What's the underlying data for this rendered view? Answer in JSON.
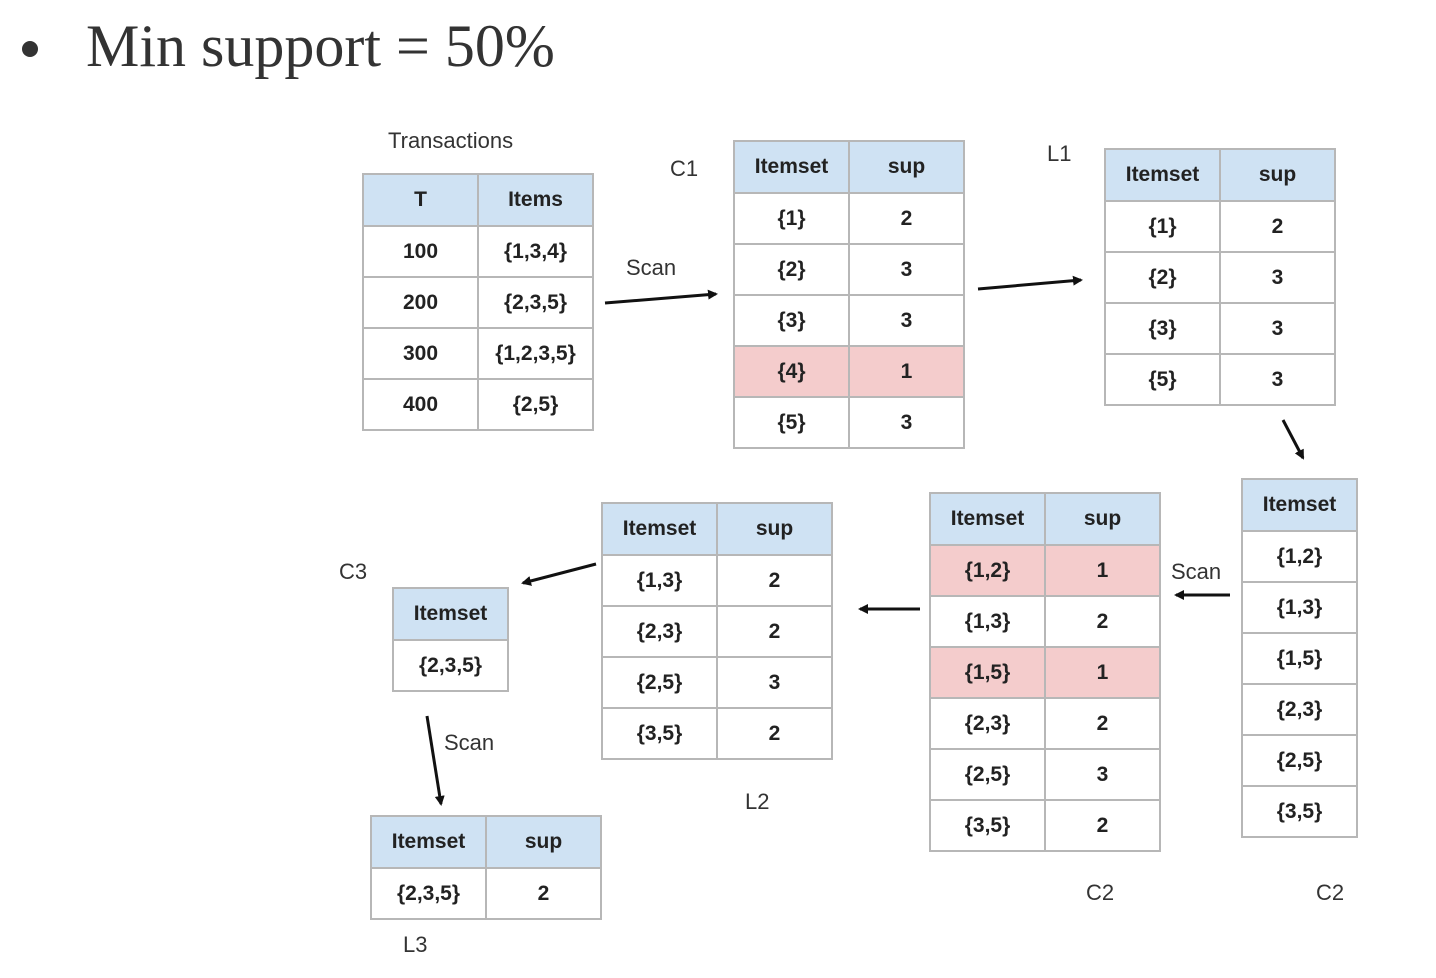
{
  "heading": "Min support = 50%",
  "labels": {
    "transactions": "Transactions",
    "c1": "C1",
    "l1": "L1",
    "c2_left": "C2",
    "c2_right": "C2",
    "l2": "L2",
    "c3": "C3",
    "l3": "L3",
    "scan1": "Scan",
    "scan2": "Scan",
    "scan3": "Scan"
  },
  "transactions": {
    "headers": [
      "T",
      "Items"
    ],
    "rows": [
      [
        "100",
        "{1,3,4}"
      ],
      [
        "200",
        "{2,3,5}"
      ],
      [
        "300",
        "{1,2,3,5}"
      ],
      [
        "400",
        "{2,5}"
      ]
    ]
  },
  "c1": {
    "headers": [
      "Itemset",
      "sup"
    ],
    "rows": [
      [
        "{1}",
        "2"
      ],
      [
        "{2}",
        "3"
      ],
      [
        "{3}",
        "3"
      ],
      [
        "{4}",
        "1"
      ],
      [
        "{5}",
        "3"
      ]
    ],
    "pruned_rows": [
      3
    ]
  },
  "l1": {
    "headers": [
      "Itemset",
      "sup"
    ],
    "rows": [
      [
        "{1}",
        "2"
      ],
      [
        "{2}",
        "3"
      ],
      [
        "{3}",
        "3"
      ],
      [
        "{5}",
        "3"
      ]
    ]
  },
  "c2_candidates": {
    "headers": [
      "Itemset"
    ],
    "rows": [
      [
        "{1,2}"
      ],
      [
        "{1,3}"
      ],
      [
        "{1,5}"
      ],
      [
        "{2,3}"
      ],
      [
        "{2,5}"
      ],
      [
        "{3,5}"
      ]
    ]
  },
  "c2_counts": {
    "headers": [
      "Itemset",
      "sup"
    ],
    "rows": [
      [
        "{1,2}",
        "1"
      ],
      [
        "{1,3}",
        "2"
      ],
      [
        "{1,5}",
        "1"
      ],
      [
        "{2,3}",
        "2"
      ],
      [
        "{2,5}",
        "3"
      ],
      [
        "{3,5}",
        "2"
      ]
    ],
    "pruned_rows": [
      0,
      2
    ]
  },
  "l2": {
    "headers": [
      "Itemset",
      "sup"
    ],
    "rows": [
      [
        "{1,3}",
        "2"
      ],
      [
        "{2,3}",
        "2"
      ],
      [
        "{2,5}",
        "3"
      ],
      [
        "{3,5}",
        "2"
      ]
    ]
  },
  "c3": {
    "headers": [
      "Itemset"
    ],
    "rows": [
      [
        "{2,3,5}"
      ]
    ]
  },
  "l3": {
    "headers": [
      "Itemset",
      "sup"
    ],
    "rows": [
      [
        "{2,3,5}",
        "2"
      ]
    ]
  },
  "colors": {
    "header_bg": "#cfe2f3",
    "pruned_bg": "#f4cccc",
    "border": "#b7b7b7"
  }
}
